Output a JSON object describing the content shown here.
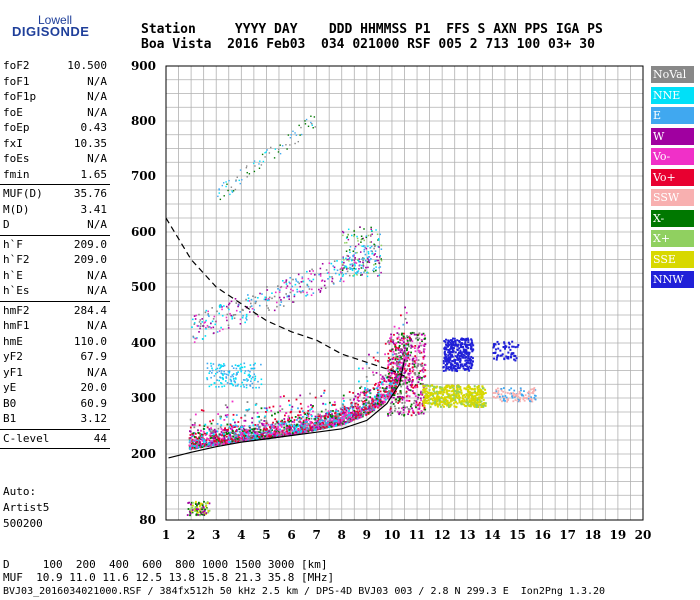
{
  "logo": {
    "line1": "Lowell",
    "line2": "DIGISONDE"
  },
  "header": {
    "line1": "Station     YYYY DAY    DDD HHMMSS P1  FFS S AXN PPS IGA PS",
    "line2": "Boa Vista  2016 Feb03  034 021000 RSF 005 2 713 100 03+ 30"
  },
  "sidebar": {
    "group1": [
      {
        "key": "foF2",
        "value": "10.500"
      },
      {
        "key": "foF1",
        "value": "N/A"
      },
      {
        "key": "foF1p",
        "value": "N/A"
      },
      {
        "key": "foE",
        "value": "N/A"
      },
      {
        "key": "foEp",
        "value": "0.43"
      },
      {
        "key": "fxI",
        "value": "10.35"
      },
      {
        "key": "foEs",
        "value": "N/A"
      },
      {
        "key": "fmin",
        "value": "1.65"
      }
    ],
    "group2": [
      {
        "key": "MUF(D)",
        "value": "35.76"
      },
      {
        "key": "M(D)",
        "value": "3.41"
      },
      {
        "key": "D",
        "value": "N/A"
      }
    ],
    "group3": [
      {
        "key": "h`F",
        "value": "209.0"
      },
      {
        "key": "h`F2",
        "value": "209.0"
      },
      {
        "key": "h`E",
        "value": "N/A"
      },
      {
        "key": "h`Es",
        "value": "N/A"
      }
    ],
    "group4": [
      {
        "key": "hmF2",
        "value": "284.4"
      },
      {
        "key": "hmF1",
        "value": "N/A"
      },
      {
        "key": "hmE",
        "value": "110.0"
      },
      {
        "key": "yF2",
        "value": "67.9"
      },
      {
        "key": "yF1",
        "value": "N/A"
      },
      {
        "key": "yE",
        "value": "20.0"
      },
      {
        "key": "B0",
        "value": "60.9"
      },
      {
        "key": "B1",
        "value": "3.12"
      }
    ],
    "group5": [
      {
        "key": "C-level",
        "value": "44"
      }
    ],
    "auto_label": "Auto:",
    "auto_name": "Artist5",
    "auto_code": "500200"
  },
  "footer": {
    "line1": "D     100  200  400  600  800 1000 1500 3000 [km]",
    "line2": "MUF  10.9 11.0 11.6 12.5 13.8 15.8 21.3 35.8 [MHz]",
    "line3": "BVJ03_2016034021000.RSF / 384fx512h 50 kHz 2.5 km / DPS-4D BVJ03 003 / 2.8 N 299.3 E  Ion2Png 1.3.20"
  },
  "legend": [
    {
      "name": "NoVal",
      "bg": "#888888",
      "fg": "#ffffff"
    },
    {
      "name": "NNE",
      "bg": "#00e0f8",
      "fg": "#ffffff"
    },
    {
      "name": "E",
      "bg": "#40a8f0",
      "fg": "#ffffff"
    },
    {
      "name": "W",
      "bg": "#a000a0",
      "fg": "#ffffff"
    },
    {
      "name": "Vo-",
      "bg": "#f030c8",
      "fg": "#ffffff"
    },
    {
      "name": "Vo+",
      "bg": "#e80030",
      "fg": "#ffffff"
    },
    {
      "name": "SSW",
      "bg": "#f8b0b0",
      "fg": "#ffffff"
    },
    {
      "name": "X-",
      "bg": "#007800",
      "fg": "#ffffff"
    },
    {
      "name": "X+",
      "bg": "#90d060",
      "fg": "#ffffff"
    },
    {
      "name": "SSE",
      "bg": "#d8d800",
      "fg": "#ffffff"
    },
    {
      "name": "NNW",
      "bg": "#2020d8",
      "fg": "#ffffff"
    }
  ],
  "chart_data": {
    "type": "scatter",
    "xlim": [
      1,
      20
    ],
    "ylim": [
      80,
      900
    ],
    "x_ticks": [
      1,
      2,
      3,
      4,
      5,
      6,
      7,
      8,
      9,
      10,
      11,
      12,
      13,
      14,
      15,
      16,
      17,
      18,
      19,
      20
    ],
    "y_ticks": [
      80,
      200,
      300,
      400,
      500,
      600,
      700,
      800,
      900
    ],
    "grid": true,
    "series": [
      {
        "name": "Vo+",
        "values": [
          [
            1.9,
            218
          ],
          [
            3,
            226
          ],
          [
            4,
            232
          ],
          [
            5,
            237
          ],
          [
            6,
            244
          ],
          [
            7,
            253
          ],
          [
            8,
            262
          ],
          [
            9,
            280
          ],
          [
            9.6,
            298
          ],
          [
            10,
            318
          ],
          [
            10.3,
            345
          ],
          [
            10.5,
            380
          ]
        ]
      },
      {
        "name": "SSE",
        "values": [
          [
            11.2,
            295
          ],
          [
            11.5,
            305
          ],
          [
            12.3,
            290
          ],
          [
            12.8,
            300
          ],
          [
            13.3,
            295
          ],
          [
            14,
            305
          ],
          [
            15,
            300
          ],
          [
            16,
            310
          ]
        ]
      },
      {
        "name": "NNW",
        "values": [
          [
            12,
            355
          ],
          [
            12.5,
            370
          ],
          [
            13,
            390
          ],
          [
            13.3,
            380
          ],
          [
            14,
            390
          ],
          [
            14.5,
            385
          ]
        ]
      }
    ],
    "lines": [
      {
        "style": "solid",
        "values": [
          [
            1.1,
            193
          ],
          [
            2,
            203
          ],
          [
            3,
            213
          ],
          [
            4,
            221
          ],
          [
            5,
            227
          ],
          [
            6,
            233
          ],
          [
            7,
            239
          ],
          [
            8,
            245
          ],
          [
            9,
            260
          ],
          [
            9.8,
            290
          ],
          [
            10.3,
            325
          ],
          [
            10.5,
            370
          ]
        ]
      },
      {
        "style": "dashed",
        "values": [
          [
            1,
            625
          ],
          [
            2,
            550
          ],
          [
            3,
            500
          ],
          [
            4,
            470
          ],
          [
            5,
            440
          ],
          [
            6,
            420
          ],
          [
            7,
            405
          ],
          [
            8,
            380
          ],
          [
            9,
            365
          ],
          [
            10,
            350
          ],
          [
            10.5,
            340
          ]
        ]
      }
    ]
  }
}
